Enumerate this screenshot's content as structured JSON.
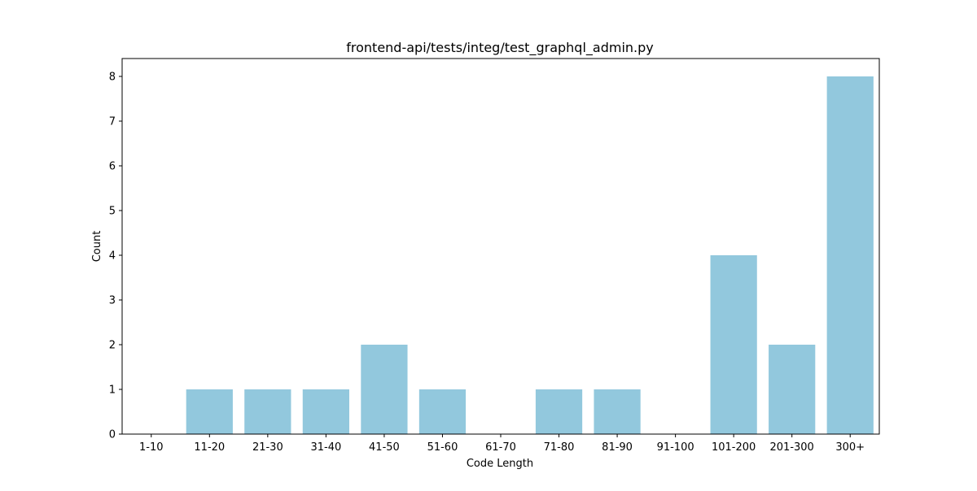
{
  "chart_data": {
    "type": "bar",
    "title": "frontend-api/tests/integ/test_graphql_admin.py",
    "xlabel": "Code Length",
    "ylabel": "Count",
    "categories": [
      "1-10",
      "11-20",
      "21-30",
      "31-40",
      "41-50",
      "51-60",
      "61-70",
      "71-80",
      "81-90",
      "91-100",
      "101-200",
      "201-300",
      "300+"
    ],
    "values": [
      0,
      1,
      1,
      1,
      2,
      1,
      0,
      1,
      1,
      0,
      4,
      2,
      8
    ],
    "ylim": [
      0,
      8.4
    ],
    "yticks": [
      0,
      1,
      2,
      3,
      4,
      5,
      6,
      7,
      8
    ],
    "bar_color": "#92c8dd",
    "grid": false,
    "legend": "none"
  }
}
